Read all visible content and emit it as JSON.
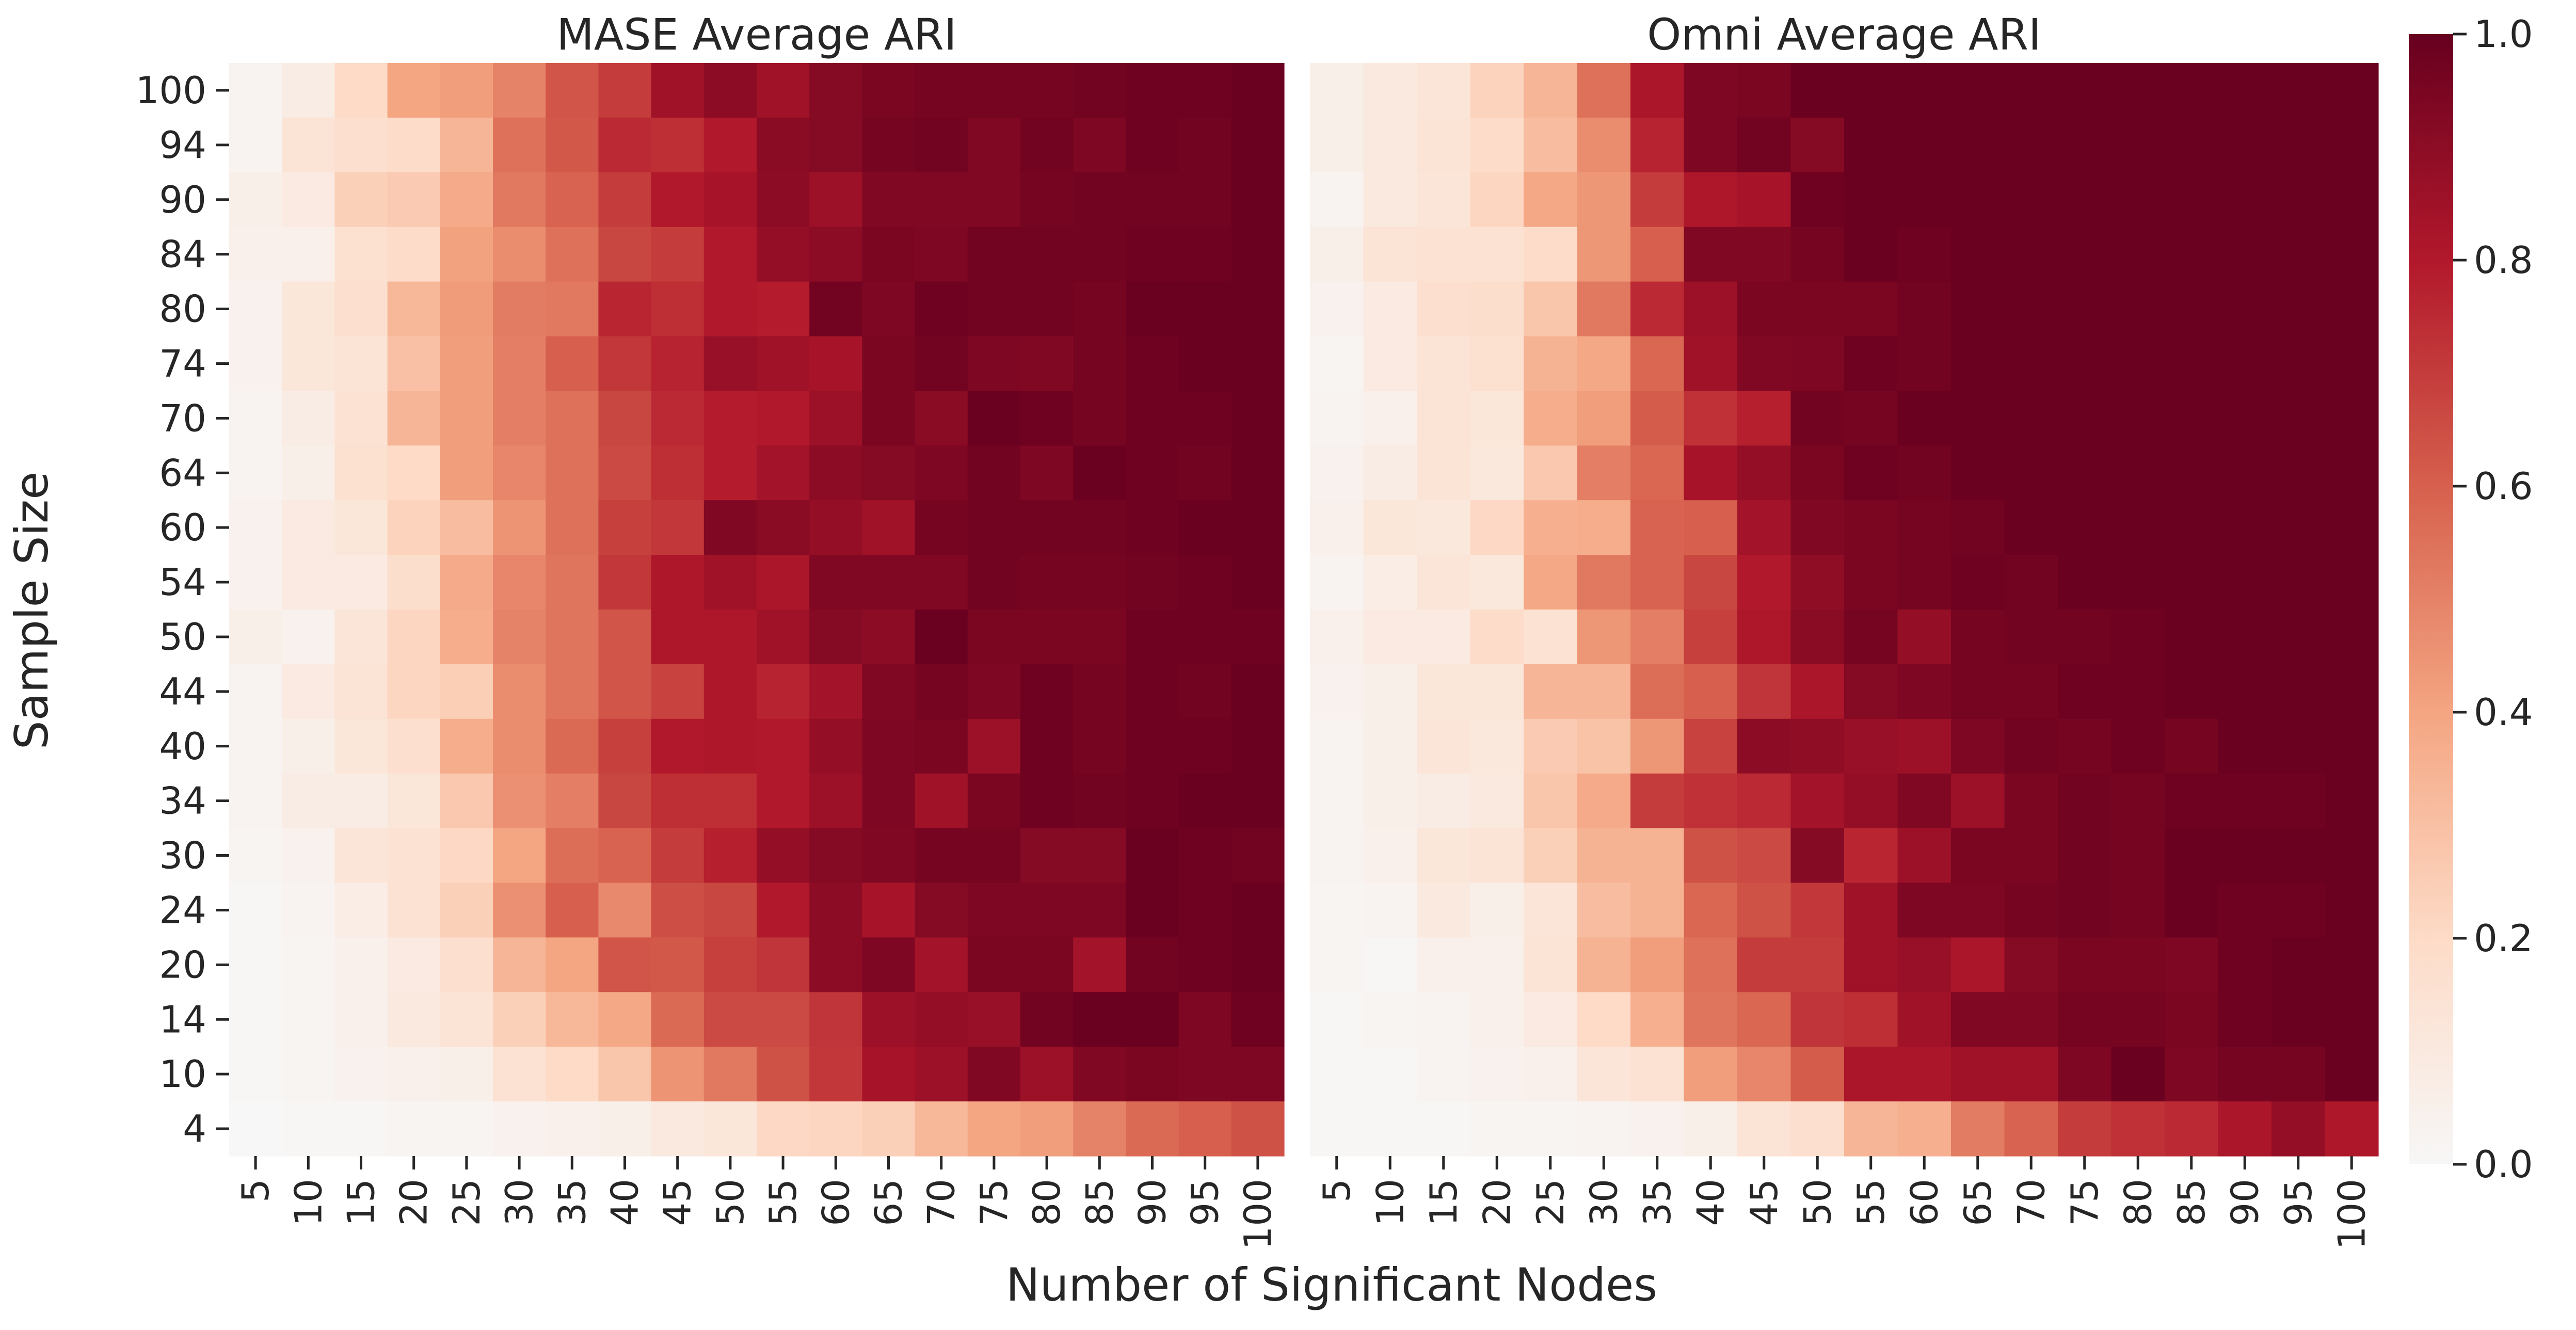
{
  "chart_data": {
    "type": "heatmap",
    "x_label": "Number of Significant Nodes",
    "y_label": "Sample Size",
    "x_categories": [
      "5",
      "10",
      "15",
      "20",
      "25",
      "30",
      "35",
      "40",
      "45",
      "50",
      "55",
      "60",
      "65",
      "70",
      "75",
      "80",
      "85",
      "90",
      "95",
      "100"
    ],
    "y_categories": [
      "100",
      "94",
      "90",
      "84",
      "80",
      "74",
      "70",
      "64",
      "60",
      "54",
      "50",
      "44",
      "40",
      "34",
      "30",
      "24",
      "20",
      "14",
      "10",
      "4"
    ],
    "colorbar": {
      "min": 0.0,
      "max": 1.0,
      "ticks": [
        "0.0",
        "0.2",
        "0.4",
        "0.6",
        "0.8",
        "1.0"
      ],
      "colormap": "RdBu_r (positive half)",
      "stops": [
        "#f7f7f7",
        "#fddbc7",
        "#f4a582",
        "#d6604d",
        "#b2182b",
        "#67001f"
      ]
    },
    "panels": [
      {
        "title": "MASE Average ARI",
        "values": [
          [
            0.03,
            0.08,
            0.2,
            0.4,
            0.42,
            0.5,
            0.63,
            0.7,
            0.85,
            0.9,
            0.85,
            0.92,
            0.95,
            0.96,
            0.96,
            0.96,
            0.97,
            0.98,
            0.98,
            0.99
          ],
          [
            0.03,
            0.14,
            0.17,
            0.19,
            0.34,
            0.55,
            0.62,
            0.75,
            0.74,
            0.8,
            0.91,
            0.92,
            0.96,
            0.97,
            0.93,
            0.97,
            0.94,
            0.98,
            0.97,
            0.99
          ],
          [
            0.06,
            0.09,
            0.24,
            0.26,
            0.38,
            0.53,
            0.59,
            0.7,
            0.8,
            0.83,
            0.9,
            0.86,
            0.93,
            0.93,
            0.93,
            0.96,
            0.97,
            0.97,
            0.97,
            0.99
          ],
          [
            0.05,
            0.05,
            0.16,
            0.19,
            0.41,
            0.47,
            0.55,
            0.67,
            0.7,
            0.8,
            0.88,
            0.9,
            0.95,
            0.94,
            0.97,
            0.97,
            0.97,
            0.98,
            0.98,
            0.99
          ],
          [
            0.04,
            0.12,
            0.17,
            0.33,
            0.43,
            0.52,
            0.53,
            0.76,
            0.74,
            0.8,
            0.79,
            0.97,
            0.94,
            0.98,
            0.97,
            0.97,
            0.96,
            0.99,
            0.99,
            0.99
          ],
          [
            0.04,
            0.12,
            0.14,
            0.3,
            0.42,
            0.51,
            0.6,
            0.71,
            0.77,
            0.87,
            0.85,
            0.83,
            0.95,
            0.97,
            0.94,
            0.93,
            0.96,
            0.98,
            0.99,
            0.99
          ],
          [
            0.03,
            0.08,
            0.15,
            0.34,
            0.42,
            0.51,
            0.55,
            0.67,
            0.75,
            0.79,
            0.8,
            0.86,
            0.95,
            0.91,
            0.99,
            0.98,
            0.96,
            0.98,
            0.98,
            0.99
          ],
          [
            0.03,
            0.06,
            0.16,
            0.2,
            0.42,
            0.49,
            0.55,
            0.66,
            0.74,
            0.79,
            0.84,
            0.9,
            0.92,
            0.94,
            0.97,
            0.94,
            0.99,
            0.98,
            0.97,
            0.99
          ],
          [
            0.04,
            0.09,
            0.12,
            0.23,
            0.31,
            0.45,
            0.55,
            0.69,
            0.71,
            0.93,
            0.91,
            0.88,
            0.85,
            0.96,
            0.97,
            0.97,
            0.97,
            0.98,
            0.99,
            0.99
          ],
          [
            0.04,
            0.09,
            0.09,
            0.18,
            0.38,
            0.49,
            0.54,
            0.71,
            0.81,
            0.85,
            0.82,
            0.93,
            0.93,
            0.93,
            0.97,
            0.96,
            0.96,
            0.97,
            0.98,
            0.99
          ],
          [
            0.06,
            0.04,
            0.13,
            0.22,
            0.37,
            0.5,
            0.54,
            0.63,
            0.81,
            0.81,
            0.85,
            0.92,
            0.9,
            0.99,
            0.95,
            0.95,
            0.95,
            0.98,
            0.98,
            0.98
          ],
          [
            0.03,
            0.09,
            0.14,
            0.22,
            0.25,
            0.47,
            0.54,
            0.63,
            0.68,
            0.81,
            0.77,
            0.84,
            0.93,
            0.96,
            0.94,
            0.98,
            0.96,
            0.98,
            0.97,
            0.99
          ],
          [
            0.03,
            0.06,
            0.12,
            0.17,
            0.37,
            0.47,
            0.57,
            0.69,
            0.8,
            0.81,
            0.8,
            0.88,
            0.94,
            0.95,
            0.86,
            0.98,
            0.96,
            0.98,
            0.98,
            0.99
          ],
          [
            0.03,
            0.08,
            0.08,
            0.12,
            0.27,
            0.46,
            0.51,
            0.67,
            0.74,
            0.74,
            0.8,
            0.86,
            0.94,
            0.85,
            0.95,
            0.98,
            0.97,
            0.98,
            0.99,
            0.99
          ],
          [
            0.02,
            0.04,
            0.13,
            0.15,
            0.21,
            0.4,
            0.56,
            0.59,
            0.7,
            0.78,
            0.88,
            0.92,
            0.93,
            0.96,
            0.96,
            0.92,
            0.92,
            0.99,
            0.98,
            0.97
          ],
          [
            0.01,
            0.03,
            0.07,
            0.15,
            0.24,
            0.46,
            0.6,
            0.48,
            0.65,
            0.67,
            0.8,
            0.9,
            0.83,
            0.92,
            0.94,
            0.94,
            0.94,
            0.99,
            0.98,
            0.99
          ],
          [
            0.01,
            0.02,
            0.05,
            0.09,
            0.17,
            0.34,
            0.4,
            0.63,
            0.62,
            0.69,
            0.72,
            0.9,
            0.94,
            0.84,
            0.95,
            0.95,
            0.84,
            0.97,
            0.98,
            0.99
          ],
          [
            0.01,
            0.02,
            0.05,
            0.1,
            0.14,
            0.24,
            0.33,
            0.39,
            0.57,
            0.66,
            0.66,
            0.72,
            0.86,
            0.88,
            0.87,
            0.97,
            0.99,
            0.99,
            0.94,
            0.98
          ],
          [
            0.01,
            0.02,
            0.04,
            0.05,
            0.06,
            0.15,
            0.2,
            0.28,
            0.45,
            0.53,
            0.64,
            0.71,
            0.83,
            0.86,
            0.93,
            0.86,
            0.93,
            0.95,
            0.94,
            0.94
          ],
          [
            0.0,
            0.01,
            0.01,
            0.02,
            0.02,
            0.04,
            0.05,
            0.06,
            0.1,
            0.12,
            0.21,
            0.22,
            0.24,
            0.33,
            0.4,
            0.42,
            0.5,
            0.57,
            0.6,
            0.64
          ]
        ]
      },
      {
        "title": "Omni Average ARI",
        "values": [
          [
            0.06,
            0.1,
            0.13,
            0.23,
            0.34,
            0.55,
            0.82,
            0.94,
            0.95,
            0.99,
            0.99,
            0.99,
            0.99,
            0.99,
            0.99,
            0.99,
            0.99,
            0.99,
            0.99,
            0.99
          ],
          [
            0.06,
            0.1,
            0.14,
            0.19,
            0.31,
            0.47,
            0.77,
            0.94,
            0.97,
            0.92,
            0.99,
            0.99,
            0.99,
            0.99,
            0.99,
            0.99,
            0.99,
            0.99,
            0.99,
            0.99
          ],
          [
            0.03,
            0.1,
            0.13,
            0.22,
            0.39,
            0.44,
            0.7,
            0.81,
            0.83,
            0.98,
            0.99,
            0.99,
            0.99,
            0.99,
            0.99,
            0.99,
            0.99,
            0.99,
            0.99,
            0.99
          ],
          [
            0.06,
            0.14,
            0.15,
            0.15,
            0.19,
            0.44,
            0.6,
            0.93,
            0.93,
            0.96,
            0.99,
            0.98,
            0.99,
            0.99,
            0.99,
            0.99,
            0.99,
            0.99,
            0.99,
            0.99
          ],
          [
            0.04,
            0.09,
            0.17,
            0.18,
            0.28,
            0.53,
            0.75,
            0.86,
            0.95,
            0.95,
            0.95,
            0.97,
            0.99,
            0.99,
            0.99,
            0.99,
            0.99,
            0.99,
            0.99,
            0.99
          ],
          [
            0.02,
            0.09,
            0.14,
            0.16,
            0.35,
            0.39,
            0.58,
            0.85,
            0.93,
            0.94,
            0.98,
            0.97,
            0.99,
            0.99,
            0.99,
            0.99,
            0.99,
            0.99,
            0.99,
            0.99
          ],
          [
            0.03,
            0.05,
            0.14,
            0.12,
            0.37,
            0.42,
            0.61,
            0.73,
            0.78,
            0.97,
            0.96,
            0.99,
            0.99,
            0.99,
            0.99,
            0.99,
            0.99,
            0.99,
            0.99,
            0.99
          ],
          [
            0.04,
            0.08,
            0.14,
            0.11,
            0.27,
            0.51,
            0.58,
            0.83,
            0.88,
            0.95,
            0.98,
            0.97,
            0.99,
            0.99,
            0.99,
            0.99,
            0.99,
            0.99,
            0.99,
            0.99
          ],
          [
            0.05,
            0.12,
            0.11,
            0.21,
            0.36,
            0.37,
            0.59,
            0.6,
            0.84,
            0.93,
            0.95,
            0.96,
            0.97,
            0.99,
            0.99,
            0.99,
            0.99,
            0.99,
            0.99,
            0.99
          ],
          [
            0.03,
            0.07,
            0.13,
            0.11,
            0.39,
            0.53,
            0.59,
            0.67,
            0.8,
            0.89,
            0.95,
            0.96,
            0.98,
            0.97,
            0.99,
            0.99,
            0.99,
            0.99,
            0.99,
            0.99
          ],
          [
            0.05,
            0.09,
            0.09,
            0.19,
            0.15,
            0.44,
            0.51,
            0.69,
            0.81,
            0.91,
            0.96,
            0.88,
            0.96,
            0.97,
            0.97,
            0.98,
            0.99,
            0.99,
            0.99,
            0.99
          ],
          [
            0.04,
            0.06,
            0.12,
            0.12,
            0.34,
            0.34,
            0.56,
            0.6,
            0.72,
            0.82,
            0.92,
            0.94,
            0.96,
            0.96,
            0.98,
            0.98,
            0.99,
            0.99,
            0.99,
            0.99
          ],
          [
            0.03,
            0.06,
            0.13,
            0.11,
            0.26,
            0.29,
            0.44,
            0.68,
            0.9,
            0.89,
            0.87,
            0.86,
            0.94,
            0.97,
            0.96,
            0.98,
            0.96,
            0.99,
            0.99,
            0.99
          ],
          [
            0.03,
            0.06,
            0.08,
            0.1,
            0.28,
            0.38,
            0.7,
            0.73,
            0.75,
            0.84,
            0.88,
            0.93,
            0.86,
            0.95,
            0.97,
            0.96,
            0.98,
            0.98,
            0.98,
            0.99
          ],
          [
            0.03,
            0.05,
            0.12,
            0.14,
            0.24,
            0.35,
            0.35,
            0.64,
            0.66,
            0.92,
            0.76,
            0.86,
            0.95,
            0.95,
            0.97,
            0.96,
            0.99,
            0.99,
            0.99,
            0.99
          ],
          [
            0.02,
            0.03,
            0.1,
            0.06,
            0.13,
            0.31,
            0.35,
            0.58,
            0.64,
            0.71,
            0.85,
            0.94,
            0.94,
            0.96,
            0.97,
            0.96,
            0.99,
            0.98,
            0.98,
            0.99
          ],
          [
            0.02,
            0.01,
            0.05,
            0.05,
            0.14,
            0.35,
            0.42,
            0.55,
            0.7,
            0.7,
            0.85,
            0.87,
            0.82,
            0.92,
            0.95,
            0.95,
            0.94,
            0.98,
            0.99,
            0.99
          ],
          [
            0.01,
            0.02,
            0.03,
            0.05,
            0.09,
            0.2,
            0.36,
            0.54,
            0.58,
            0.72,
            0.74,
            0.85,
            0.93,
            0.93,
            0.96,
            0.96,
            0.95,
            0.98,
            0.99,
            0.99
          ],
          [
            0.01,
            0.01,
            0.03,
            0.04,
            0.05,
            0.13,
            0.15,
            0.42,
            0.49,
            0.61,
            0.82,
            0.82,
            0.85,
            0.85,
            0.94,
            0.99,
            0.94,
            0.96,
            0.96,
            0.99
          ],
          [
            0.01,
            0.01,
            0.01,
            0.02,
            0.02,
            0.03,
            0.04,
            0.06,
            0.14,
            0.17,
            0.34,
            0.36,
            0.52,
            0.59,
            0.7,
            0.73,
            0.75,
            0.82,
            0.88,
            0.81
          ]
        ]
      }
    ]
  }
}
